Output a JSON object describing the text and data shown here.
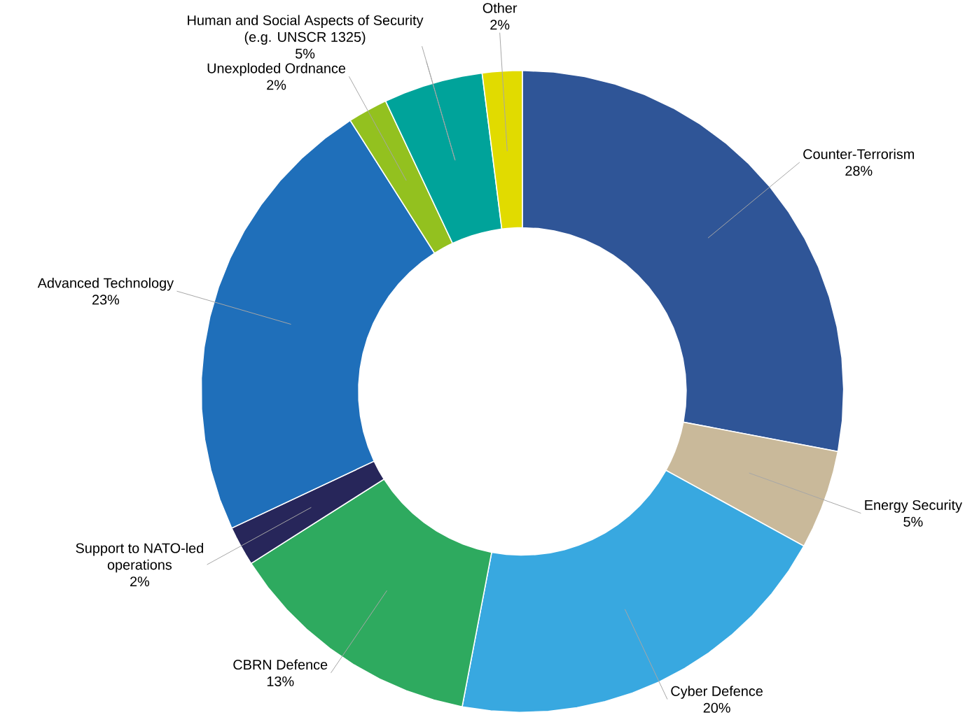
{
  "chart_data": {
    "type": "donut",
    "categories": [
      "Counter-Terrorism",
      "Energy Security",
      "Cyber Defence",
      "CBRN Defence",
      "Support to NATO-led operations",
      "Advanced Technology",
      "Unexploded Ordnance",
      "Human and Social Aspects of Security (e.g. UNSCR 1325)",
      "Other"
    ],
    "values": [
      28,
      5,
      20,
      13,
      2,
      23,
      2,
      5,
      2
    ],
    "colors": [
      "#2f5597",
      "#c9b99a",
      "#38a8e0",
      "#2eaa5f",
      "#27265a",
      "#1f6fba",
      "#93c11f",
      "#00a39a",
      "#e1db00"
    ],
    "value_labels": [
      "28%",
      "5%",
      "20%",
      "13%",
      "2%",
      "23%",
      "2%",
      "5%",
      "2%"
    ]
  }
}
